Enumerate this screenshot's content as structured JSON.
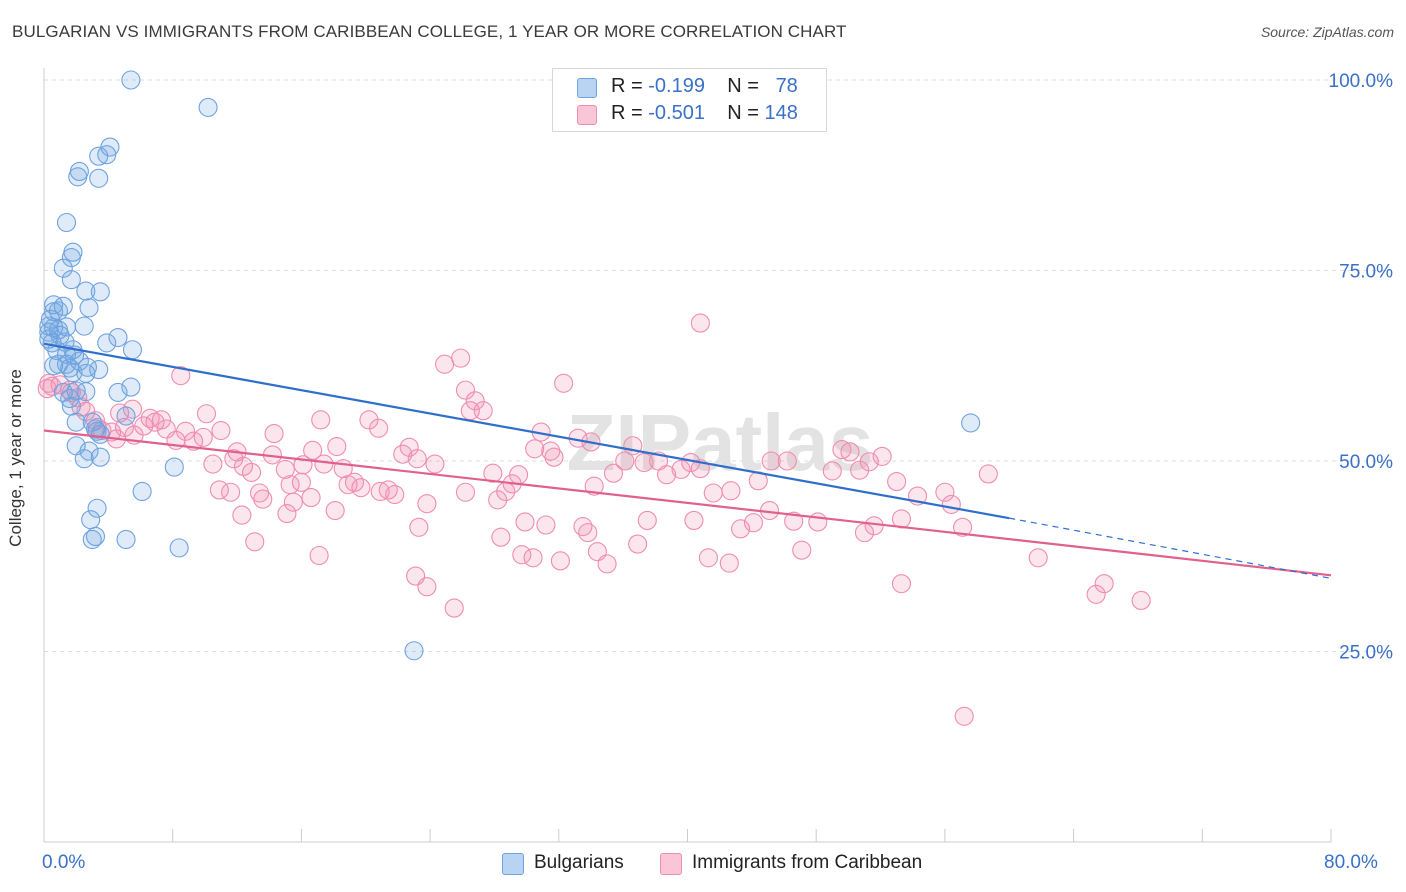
{
  "header": {
    "title": "BULGARIAN VS IMMIGRANTS FROM CARIBBEAN COLLEGE, 1 YEAR OR MORE CORRELATION CHART",
    "source": "Source: ZipAtlas.com"
  },
  "legend_top": {
    "rows": [
      {
        "r_label": "R =",
        "r_value": "-0.199",
        "n_label": "N =",
        "n_value": "78"
      },
      {
        "r_label": "R =",
        "r_value": "-0.501",
        "n_label": "N =",
        "n_value": "148"
      }
    ]
  },
  "legend_bottom": [
    "Bulgarians",
    "Immigrants from Caribbean"
  ],
  "colors": {
    "blue": "#6fa3e0",
    "pink": "#f08cb0",
    "blue_line": "#2f6fcc",
    "pink_line": "#e0608e",
    "accent_text": "#3a70c8"
  },
  "chart_data": {
    "type": "scatter",
    "title": "BULGARIAN VS IMMIGRANTS FROM CARIBBEAN COLLEGE, 1 YEAR OR MORE CORRELATION CHART",
    "xlabel": "",
    "ylabel": "College, 1 year or more",
    "xlim": [
      0,
      80
    ],
    "ylim": [
      0,
      100
    ],
    "x_tick_labels": [
      "0.0%",
      "80.0%"
    ],
    "y_tick_labels": [
      "25.0%",
      "50.0%",
      "75.0%",
      "100.0%"
    ],
    "y_ticks": [
      25,
      50,
      75,
      100
    ],
    "grid": true,
    "legend_position": "top-center",
    "watermark": "ZIPatlas",
    "series": [
      {
        "name": "Bulgarians",
        "color": "#6fa3e0",
        "points": [
          [
            5.4,
            100
          ],
          [
            10.2,
            96.4
          ],
          [
            4.1,
            91.2
          ],
          [
            3.4,
            90
          ],
          [
            3.9,
            90.2
          ],
          [
            2.2,
            88
          ],
          [
            3.4,
            87.1
          ],
          [
            2.1,
            87.3
          ],
          [
            1.4,
            81.3
          ],
          [
            1.8,
            77.4
          ],
          [
            1.7,
            76.7
          ],
          [
            1.2,
            75.3
          ],
          [
            1.7,
            73.8
          ],
          [
            2.6,
            72.3
          ],
          [
            3.5,
            72.2
          ],
          [
            0.6,
            70.5
          ],
          [
            1.2,
            70.3
          ],
          [
            2.8,
            70.1
          ],
          [
            0.6,
            69.6
          ],
          [
            0.9,
            69.7
          ],
          [
            0.4,
            68.6
          ],
          [
            0.3,
            67.7
          ],
          [
            0.6,
            67.5
          ],
          [
            1.4,
            67.6
          ],
          [
            2.5,
            67.7
          ],
          [
            0.9,
            67.2
          ],
          [
            0.3,
            66.9
          ],
          [
            1.0,
            66.5
          ],
          [
            0.3,
            66.0
          ],
          [
            4.6,
            66.2
          ],
          [
            0.5,
            65.5
          ],
          [
            1.3,
            65.6
          ],
          [
            3.9,
            65.5
          ],
          [
            0.8,
            64.5
          ],
          [
            1.4,
            64.0
          ],
          [
            1.8,
            64.6
          ],
          [
            5.5,
            64.6
          ],
          [
            1.9,
            63.9
          ],
          [
            1.4,
            62.7
          ],
          [
            0.9,
            62.7
          ],
          [
            2.2,
            63.1
          ],
          [
            0.6,
            62.5
          ],
          [
            1.6,
            62.2
          ],
          [
            2.7,
            62.3
          ],
          [
            3.4,
            62.0
          ],
          [
            1.8,
            61.6
          ],
          [
            2.6,
            61.5
          ],
          [
            5.4,
            59.7
          ],
          [
            2.0,
            59.2
          ],
          [
            1.2,
            59.0
          ],
          [
            2.6,
            59.1
          ],
          [
            4.6,
            59.0
          ],
          [
            1.6,
            58.2
          ],
          [
            1.7,
            57.2
          ],
          [
            5.1,
            55.9
          ],
          [
            2.0,
            55.1
          ],
          [
            3.0,
            55.1
          ],
          [
            3.2,
            54.2
          ],
          [
            3.3,
            53.9
          ],
          [
            3.5,
            53.5
          ],
          [
            2.0,
            52.0
          ],
          [
            2.8,
            51.3
          ],
          [
            3.5,
            50.5
          ],
          [
            2.5,
            50.3
          ],
          [
            8.1,
            49.2
          ],
          [
            6.1,
            46.0
          ],
          [
            3.3,
            43.8
          ],
          [
            2.9,
            42.3
          ],
          [
            3.2,
            40.1
          ],
          [
            3.0,
            39.7
          ],
          [
            5.1,
            39.7
          ],
          [
            8.4,
            38.6
          ],
          [
            57.6,
            55.0
          ],
          [
            23.0,
            25.1
          ]
        ]
      },
      {
        "name": "Immigrants from Caribbean",
        "color": "#f08cb0",
        "points": [
          [
            0.2,
            59.5
          ],
          [
            0.3,
            60.2
          ],
          [
            0.5,
            59.8
          ],
          [
            1.0,
            60.0
          ],
          [
            1.6,
            59.3
          ],
          [
            1.7,
            59.0
          ],
          [
            2.1,
            58.3
          ],
          [
            2.3,
            57.1
          ],
          [
            2.6,
            56.5
          ],
          [
            3.2,
            55.3
          ],
          [
            3.3,
            54.4
          ],
          [
            3.6,
            54.0
          ],
          [
            4.2,
            53.8
          ],
          [
            4.5,
            52.9
          ],
          [
            4.7,
            56.3
          ],
          [
            5.0,
            54.4
          ],
          [
            5.6,
            53.4
          ],
          [
            5.5,
            56.8
          ],
          [
            6.2,
            54.6
          ],
          [
            6.6,
            55.6
          ],
          [
            6.9,
            55.1
          ],
          [
            7.3,
            55.4
          ],
          [
            7.6,
            54.2
          ],
          [
            8.2,
            52.7
          ],
          [
            8.8,
            53.9
          ],
          [
            9.3,
            52.6
          ],
          [
            9.9,
            53.1
          ],
          [
            8.5,
            61.2
          ],
          [
            10.1,
            56.2
          ],
          [
            11.0,
            54.0
          ],
          [
            10.5,
            49.6
          ],
          [
            12.0,
            51.2
          ],
          [
            11.8,
            50.3
          ],
          [
            12.4,
            49.3
          ],
          [
            10.9,
            46.2
          ],
          [
            11.6,
            45.9
          ],
          [
            12.9,
            48.5
          ],
          [
            13.4,
            45.8
          ],
          [
            12.3,
            42.9
          ],
          [
            13.6,
            45.0
          ],
          [
            13.1,
            39.4
          ],
          [
            14.2,
            50.8
          ],
          [
            14.3,
            53.6
          ],
          [
            15.0,
            48.9
          ],
          [
            15.3,
            46.9
          ],
          [
            16.1,
            49.5
          ],
          [
            16.7,
            51.4
          ],
          [
            16.0,
            47.2
          ],
          [
            15.5,
            44.6
          ],
          [
            15.1,
            43.1
          ],
          [
            16.6,
            45.2
          ],
          [
            17.2,
            55.4
          ],
          [
            17.4,
            49.6
          ],
          [
            17.1,
            37.6
          ],
          [
            18.2,
            51.9
          ],
          [
            18.6,
            49.0
          ],
          [
            18.9,
            46.9
          ],
          [
            18.1,
            43.5
          ],
          [
            19.3,
            47.2
          ],
          [
            19.7,
            46.5
          ],
          [
            20.2,
            55.4
          ],
          [
            20.8,
            54.3
          ],
          [
            21.4,
            46.2
          ],
          [
            20.9,
            46.0
          ],
          [
            21.8,
            45.6
          ],
          [
            22.3,
            50.9
          ],
          [
            22.7,
            51.8
          ],
          [
            23.2,
            50.3
          ],
          [
            24.3,
            49.6
          ],
          [
            23.8,
            44.4
          ],
          [
            23.3,
            41.3
          ],
          [
            23.1,
            34.9
          ],
          [
            23.8,
            33.5
          ],
          [
            24.9,
            62.7
          ],
          [
            25.9,
            63.5
          ],
          [
            26.2,
            59.3
          ],
          [
            26.5,
            56.6
          ],
          [
            26.8,
            57.9
          ],
          [
            26.2,
            45.9
          ],
          [
            25.5,
            30.7
          ],
          [
            27.3,
            56.6
          ],
          [
            27.9,
            48.4
          ],
          [
            28.2,
            44.9
          ],
          [
            28.7,
            46.0
          ],
          [
            29.5,
            48.2
          ],
          [
            29.1,
            47.0
          ],
          [
            28.4,
            40.0
          ],
          [
            29.9,
            42.0
          ],
          [
            30.5,
            51.6
          ],
          [
            30.9,
            53.8
          ],
          [
            31.5,
            51.3
          ],
          [
            31.7,
            50.5
          ],
          [
            31.2,
            41.6
          ],
          [
            30.4,
            37.3
          ],
          [
            29.7,
            37.7
          ],
          [
            32.1,
            36.9
          ],
          [
            33.2,
            53.0
          ],
          [
            34.0,
            52.5
          ],
          [
            34.2,
            46.7
          ],
          [
            33.5,
            41.4
          ],
          [
            33.8,
            40.6
          ],
          [
            34.4,
            38.1
          ],
          [
            35.4,
            48.4
          ],
          [
            35.0,
            36.5
          ],
          [
            36.1,
            50.0
          ],
          [
            36.6,
            52.0
          ],
          [
            37.3,
            49.8
          ],
          [
            36.9,
            39.1
          ],
          [
            37.5,
            42.2
          ],
          [
            38.2,
            50.0
          ],
          [
            38.7,
            48.2
          ],
          [
            39.6,
            48.9
          ],
          [
            40.2,
            49.8
          ],
          [
            40.8,
            49.0
          ],
          [
            40.4,
            42.2
          ],
          [
            41.6,
            45.8
          ],
          [
            41.3,
            37.3
          ],
          [
            42.7,
            46.1
          ],
          [
            43.3,
            41.1
          ],
          [
            42.6,
            36.6
          ],
          [
            44.4,
            47.4
          ],
          [
            45.2,
            50.0
          ],
          [
            45.1,
            43.5
          ],
          [
            44.1,
            41.9
          ],
          [
            46.2,
            50.0
          ],
          [
            46.6,
            42.1
          ],
          [
            47.1,
            38.3
          ],
          [
            48.1,
            42.0
          ],
          [
            49.0,
            48.7
          ],
          [
            49.6,
            51.5
          ],
          [
            50.1,
            51.2
          ],
          [
            50.7,
            48.8
          ],
          [
            51.3,
            49.9
          ],
          [
            51.0,
            40.6
          ],
          [
            52.1,
            50.6
          ],
          [
            51.6,
            41.5
          ],
          [
            53.0,
            47.3
          ],
          [
            53.3,
            42.4
          ],
          [
            54.3,
            45.4
          ],
          [
            53.3,
            33.9
          ],
          [
            56.0,
            45.9
          ],
          [
            56.4,
            44.3
          ],
          [
            57.1,
            41.3
          ],
          [
            58.7,
            48.3
          ],
          [
            61.8,
            37.3
          ],
          [
            65.4,
            32.5
          ],
          [
            65.9,
            33.9
          ],
          [
            68.2,
            31.7
          ],
          [
            57.2,
            16.5
          ],
          [
            40.8,
            68.1
          ],
          [
            32.3,
            60.2
          ]
        ]
      }
    ],
    "trend_lines": [
      {
        "series": "Bulgarians",
        "x": [
          0,
          60.0
        ],
        "y": [
          65.4,
          42.5
        ],
        "dashed_extension_to_x": 80,
        "dashed_extension_to_y": 34.6
      },
      {
        "series": "Immigrants from Caribbean",
        "x": [
          0,
          80
        ],
        "y": [
          54.0,
          35.0
        ]
      }
    ]
  }
}
